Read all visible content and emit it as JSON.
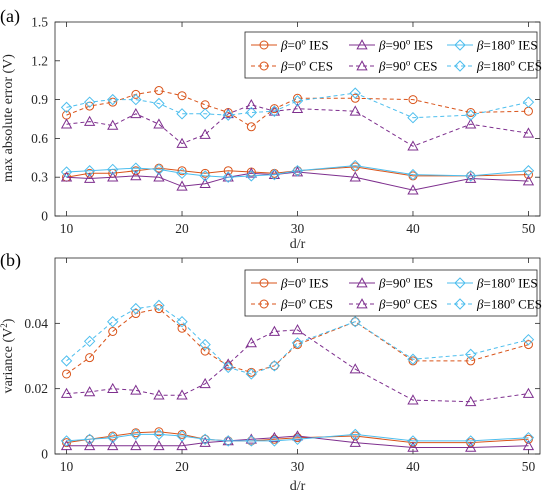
{
  "chart_data": [
    {
      "type": "line",
      "panel_label": "(a)",
      "xlabel": "d/r",
      "ylabel": "max absolute error (V)",
      "xlim": [
        9,
        51
      ],
      "ylim": [
        0,
        1.5
      ],
      "xticks": [
        10,
        20,
        30,
        40,
        50
      ],
      "yticks": [
        0,
        0.3,
        0.6,
        0.9,
        1.2,
        1.5
      ],
      "ytick_labels": [
        "0",
        "0.3",
        "0.6",
        "0.9",
        "1.2",
        "1.5"
      ],
      "grid": false,
      "legend_position": "top-right",
      "x": [
        10,
        12,
        14,
        16,
        18,
        20,
        22,
        24,
        26,
        28,
        30,
        35,
        40,
        45,
        50
      ],
      "series": [
        {
          "name": "β=0° IES",
          "prefix": "β",
          "rest": "=0",
          "sup": "o",
          "suffix": " IES",
          "color": "#D95319",
          "dash": "solid",
          "marker": "circle",
          "values": [
            0.3,
            0.33,
            0.33,
            0.35,
            0.37,
            0.35,
            0.33,
            0.35,
            0.34,
            0.33,
            0.35,
            0.38,
            0.31,
            0.31,
            0.32
          ]
        },
        {
          "name": "β=90° IES",
          "prefix": "β",
          "rest": "=90",
          "sup": "o",
          "suffix": " IES",
          "color": "#7E2F8E",
          "dash": "solid",
          "marker": "triangle",
          "values": [
            0.3,
            0.29,
            0.3,
            0.31,
            0.3,
            0.23,
            0.25,
            0.3,
            0.33,
            0.32,
            0.34,
            0.3,
            0.2,
            0.29,
            0.27
          ]
        },
        {
          "name": "β=180° IES",
          "prefix": "β",
          "rest": "=180",
          "sup": "o",
          "suffix": " IES",
          "color": "#4DBEEE",
          "dash": "solid",
          "marker": "diamond",
          "values": [
            0.34,
            0.35,
            0.36,
            0.37,
            0.36,
            0.33,
            0.31,
            0.3,
            0.31,
            0.32,
            0.35,
            0.39,
            0.32,
            0.31,
            0.35
          ]
        },
        {
          "name": "β=0° CES",
          "prefix": "β",
          "rest": "=0",
          "sup": "o",
          "suffix": " CES",
          "color": "#D95319",
          "dash": "dashed",
          "marker": "circle",
          "values": [
            0.78,
            0.85,
            0.88,
            0.94,
            0.97,
            0.93,
            0.86,
            0.8,
            0.69,
            0.83,
            0.91,
            0.91,
            0.9,
            0.8,
            0.81
          ]
        },
        {
          "name": "β=90° CES",
          "prefix": "β",
          "rest": "=90",
          "sup": "o",
          "suffix": " CES",
          "color": "#7E2F8E",
          "dash": "dashed",
          "marker": "triangle",
          "values": [
            0.71,
            0.73,
            0.7,
            0.79,
            0.71,
            0.56,
            0.63,
            0.79,
            0.86,
            0.81,
            0.83,
            0.81,
            0.54,
            0.71,
            0.64
          ]
        },
        {
          "name": "β=180° CES",
          "prefix": "β",
          "rest": "=180",
          "sup": "o",
          "suffix": " CES",
          "color": "#4DBEEE",
          "dash": "dashed",
          "marker": "diamond",
          "values": [
            0.84,
            0.88,
            0.9,
            0.9,
            0.87,
            0.79,
            0.79,
            0.78,
            0.8,
            0.81,
            0.89,
            0.95,
            0.76,
            0.78,
            0.88
          ]
        }
      ]
    },
    {
      "type": "line",
      "panel_label": "(b)",
      "xlabel": "d/r",
      "ylabel": "variance (V",
      "ylabel_sup": "2",
      "ylabel_end": ")",
      "xlim": [
        9,
        51
      ],
      "ylim": [
        0,
        0.06
      ],
      "xticks": [
        10,
        20,
        30,
        40,
        50
      ],
      "yticks": [
        0,
        0.02,
        0.04
      ],
      "ytick_labels": [
        "0",
        "0.02",
        "0.04"
      ],
      "grid": false,
      "legend_position": "top-right",
      "x": [
        10,
        12,
        14,
        16,
        18,
        20,
        22,
        24,
        26,
        28,
        30,
        35,
        40,
        45,
        50
      ],
      "series": [
        {
          "name": "β=0° IES",
          "prefix": "β",
          "rest": "=0",
          "sup": "o",
          "suffix": " IES",
          "color": "#D95319",
          "dash": "solid",
          "marker": "circle",
          "values": [
            0.0035,
            0.0045,
            0.0055,
            0.0065,
            0.0068,
            0.006,
            0.0045,
            0.004,
            0.004,
            0.0045,
            0.005,
            0.0055,
            0.0035,
            0.0035,
            0.0045
          ]
        },
        {
          "name": "β=90° IES",
          "prefix": "β",
          "rest": "=90",
          "sup": "o",
          "suffix": " IES",
          "color": "#7E2F8E",
          "dash": "solid",
          "marker": "triangle",
          "values": [
            0.0025,
            0.0025,
            0.0025,
            0.0025,
            0.0025,
            0.0025,
            0.0035,
            0.004,
            0.0045,
            0.005,
            0.0055,
            0.0035,
            0.002,
            0.002,
            0.0025
          ]
        },
        {
          "name": "β=180° IES",
          "prefix": "β",
          "rest": "=180",
          "sup": "o",
          "suffix": " IES",
          "color": "#4DBEEE",
          "dash": "solid",
          "marker": "diamond",
          "values": [
            0.004,
            0.0045,
            0.005,
            0.006,
            0.006,
            0.0055,
            0.0045,
            0.004,
            0.004,
            0.004,
            0.0045,
            0.006,
            0.004,
            0.004,
            0.005
          ]
        },
        {
          "name": "β=0° CES",
          "prefix": "β",
          "rest": "=0",
          "sup": "o",
          "suffix": " CES",
          "color": "#D95319",
          "dash": "dashed",
          "marker": "circle",
          "values": [
            0.0245,
            0.0295,
            0.0375,
            0.043,
            0.0445,
            0.0385,
            0.0315,
            0.027,
            0.025,
            0.027,
            0.0335,
            0.0405,
            0.0285,
            0.0285,
            0.0335
          ]
        },
        {
          "name": "β=90° CES",
          "prefix": "β",
          "rest": "=90",
          "sup": "o",
          "suffix": " CES",
          "color": "#7E2F8E",
          "dash": "dashed",
          "marker": "triangle",
          "values": [
            0.0185,
            0.019,
            0.02,
            0.0195,
            0.018,
            0.018,
            0.0215,
            0.0275,
            0.034,
            0.0375,
            0.038,
            0.026,
            0.0165,
            0.016,
            0.0185
          ]
        },
        {
          "name": "β=180° CES",
          "prefix": "β",
          "rest": "=180",
          "sup": "o",
          "suffix": " CES",
          "color": "#4DBEEE",
          "dash": "dashed",
          "marker": "diamond",
          "values": [
            0.0285,
            0.0345,
            0.0405,
            0.0445,
            0.0455,
            0.0405,
            0.0335,
            0.0265,
            0.0245,
            0.027,
            0.034,
            0.0405,
            0.029,
            0.0305,
            0.035
          ]
        }
      ]
    }
  ]
}
